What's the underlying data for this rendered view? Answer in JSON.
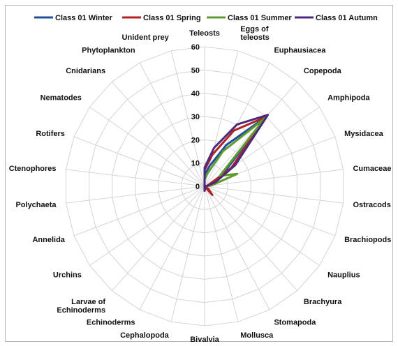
{
  "chart_data": {
    "type": "radar",
    "title": "",
    "categories": [
      "Teleosts",
      "Eggs of teleosts",
      "Euphausiacea",
      "Copepoda",
      "Amphipoda",
      "Mysidacea",
      "Cumaceae",
      "Ostracods",
      "Brachiopods",
      "Nauplius",
      "Brachyura",
      "Stomapoda",
      "Mollusca",
      "Bivalvia",
      "Cephalopoda",
      "Echinoderms",
      "Larvae of Echinoderms",
      "Urchins",
      "Annelida",
      "Polychaeta",
      "Ctenophores",
      "Rotifers",
      "Nematodes",
      "Cnidarians",
      "Phytoplankton",
      "Unident prey"
    ],
    "rlim": [
      0,
      60
    ],
    "ticks": [
      0,
      10,
      20,
      30,
      40,
      50,
      60
    ],
    "grid": true,
    "legend_position": "top",
    "series": [
      {
        "name": "Class 01 Winter",
        "color": "#1f4e9c",
        "values": [
          5,
          9,
          20,
          40,
          10,
          4,
          1,
          0,
          0,
          0,
          0,
          0,
          0,
          1,
          0,
          0,
          0,
          0,
          0,
          0,
          0,
          0,
          0,
          0,
          0,
          0
        ]
      },
      {
        "name": "Class 01 Spring",
        "color": "#b22222",
        "values": [
          7,
          14,
          27,
          40,
          14,
          2,
          1,
          0,
          0,
          2,
          5,
          0,
          0,
          1,
          0,
          0,
          0,
          0,
          0,
          0,
          0,
          0,
          0,
          0,
          0,
          0
        ]
      },
      {
        "name": "Class 01 Summer",
        "color": "#5e9a2e",
        "values": [
          3,
          6,
          17,
          39,
          8,
          15,
          3,
          0,
          0,
          0,
          0,
          0,
          0,
          0,
          0,
          0,
          0,
          0,
          0,
          0,
          0,
          0,
          0,
          0,
          0,
          0
        ]
      },
      {
        "name": "Class 01 Autumn",
        "color": "#4b2a7b",
        "values": [
          8,
          17,
          30,
          41,
          16,
          5,
          1,
          0,
          0,
          0,
          0,
          0,
          1,
          2,
          0,
          0,
          0,
          0,
          0,
          0,
          0,
          0,
          0,
          0,
          0,
          0
        ]
      }
    ]
  }
}
